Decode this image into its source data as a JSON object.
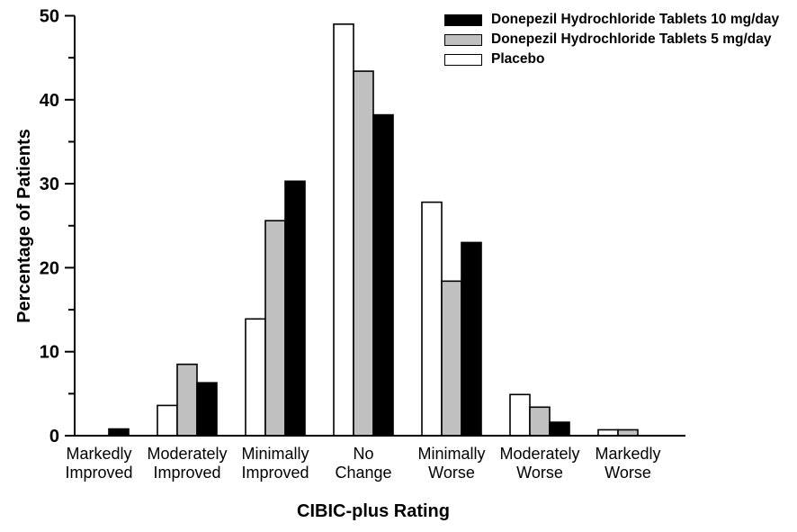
{
  "chart_data": {
    "type": "bar",
    "title": "",
    "xlabel": "CIBIC-plus Rating",
    "ylabel": "Percentage of Patients",
    "ylim": [
      0,
      50
    ],
    "y_major_ticks": [
      0,
      10,
      20,
      30,
      40,
      50
    ],
    "y_minor_ticks": [
      5,
      15,
      25,
      35,
      45
    ],
    "grid": false,
    "legend_position": "top-right",
    "bar_order_in_group_left_to_right": [
      "Placebo",
      "Donepezil Hydrochloride Tablets 5 mg/day",
      "Donepezil Hydrochloride Tablets 10 mg/day"
    ],
    "categories": [
      [
        "Markedly",
        "Improved"
      ],
      [
        "Moderately",
        "Improved"
      ],
      [
        "Minimally",
        "Improved"
      ],
      [
        "No",
        "Change"
      ],
      [
        "Minimally",
        "Worse"
      ],
      [
        "Moderately",
        "Worse"
      ],
      [
        "Markedly",
        "Worse"
      ]
    ],
    "series": [
      {
        "name": "Donepezil Hydrochloride Tablets 10 mg/day",
        "color": "#000000",
        "values": [
          0.8,
          6.3,
          30.3,
          38.2,
          23.0,
          1.6,
          0
        ]
      },
      {
        "name": "Donepezil Hydrochloride Tablets 5 mg/day",
        "color": "#c0c0c0",
        "values": [
          0,
          8.5,
          25.6,
          43.4,
          18.4,
          3.4,
          0.7
        ]
      },
      {
        "name": "Placebo",
        "color": "#ffffff",
        "values": [
          0,
          3.6,
          13.9,
          49.0,
          27.8,
          4.9,
          0.7
        ]
      }
    ]
  }
}
